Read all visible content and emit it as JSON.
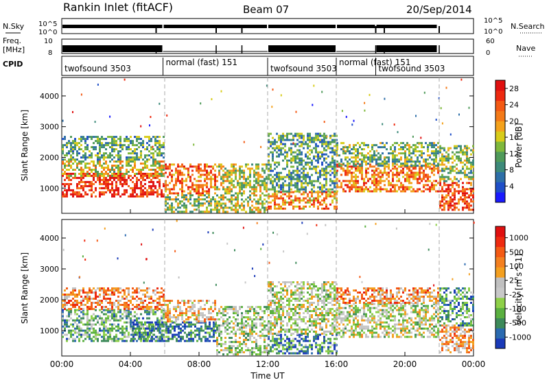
{
  "header": {
    "station": "Rankin Inlet (fitACF)",
    "beam": "Beam 07",
    "date": "20/Sep/2014"
  },
  "param_panel": {
    "left_labels": {
      "nsky": "N.Sky",
      "freq_top": "Freq.",
      "freq_bottom": "[MHz]",
      "cpid": "CPID"
    },
    "right_labels": {
      "nsearch": "N.Search",
      "nave": "Nave"
    },
    "nsky_ticks": [
      "10^5",
      "10^0"
    ],
    "nsearch_ticks": [
      "10^5",
      "10^0"
    ],
    "freq_ticks": [
      "10",
      "8"
    ],
    "nave_ticks": [
      "60",
      "0"
    ],
    "cpid_segments": [
      {
        "name": "twofsound",
        "id": "3503",
        "start_hour": 0.0,
        "end_hour": 5.9
      },
      {
        "name": "normal (fast)",
        "id": "151",
        "start_hour": 5.9,
        "end_hour": 12.0
      },
      {
        "name": "twofsound",
        "id": "3503",
        "start_hour": 12.0,
        "end_hour": 16.0
      },
      {
        "name": "normal (fast)",
        "id": "151",
        "start_hour": 16.0,
        "end_hour": 18.3
      },
      {
        "name": "twofsound",
        "id": "3503",
        "start_hour": 18.3,
        "end_hour": 21.9
      }
    ]
  },
  "chart_data": [
    {
      "type": "heatmap",
      "panel": "power",
      "ylabel": "Slant Range [km]",
      "xlabel": "",
      "ylim": [
        180,
        4600
      ],
      "xlim_hours": [
        0,
        24
      ],
      "yticks": [
        1000,
        2000,
        3000,
        4000
      ],
      "colorbar": {
        "label": "Power [dB]",
        "ticks": [
          4,
          8,
          12,
          16,
          20,
          24,
          28
        ],
        "range": [
          0,
          30
        ],
        "colors": [
          "#1a1aff",
          "#1f4fc8",
          "#2d6fa8",
          "#3d8a7a",
          "#4f9a5a",
          "#7fb83c",
          "#d8cc1a",
          "#f4a21c",
          "#f47a18",
          "#f45a14",
          "#ee2a10",
          "#e01010"
        ]
      },
      "scatter_regions": [
        {
          "t0": 0.0,
          "t1": 5.9,
          "r0": 700,
          "r1": 1500,
          "level": 0.9
        },
        {
          "t0": 0.0,
          "t1": 6.0,
          "r0": 1400,
          "r1": 1900,
          "level": 0.55
        },
        {
          "t0": 0.0,
          "t1": 6.0,
          "r0": 1900,
          "r1": 2700,
          "level": 0.35
        },
        {
          "t0": 6.0,
          "t1": 9.0,
          "r0": 800,
          "r1": 1800,
          "level": 0.75
        },
        {
          "t0": 6.0,
          "t1": 9.0,
          "r0": 250,
          "r1": 800,
          "level": 0.45
        },
        {
          "t0": 9.0,
          "t1": 12.0,
          "r0": 250,
          "r1": 1800,
          "level": 0.5
        },
        {
          "t0": 12.0,
          "t1": 16.0,
          "r0": 300,
          "r1": 900,
          "level": 0.7
        },
        {
          "t0": 12.0,
          "t1": 16.0,
          "r0": 900,
          "r1": 2800,
          "level": 0.35
        },
        {
          "t0": 16.0,
          "t1": 22.0,
          "r0": 900,
          "r1": 1800,
          "level": 0.75
        },
        {
          "t0": 16.0,
          "t1": 22.0,
          "r0": 1700,
          "r1": 2500,
          "level": 0.4
        },
        {
          "t0": 22.0,
          "t1": 24.0,
          "r0": 300,
          "r1": 1200,
          "level": 0.85
        },
        {
          "t0": 22.0,
          "t1": 24.0,
          "r0": 1200,
          "r1": 2400,
          "level": 0.45
        }
      ]
    },
    {
      "type": "heatmap",
      "panel": "velocity",
      "ylabel": "Slant Range [km]",
      "xlabel": "Time UT",
      "ylim": [
        180,
        4600
      ],
      "xlim_hours": [
        0,
        24
      ],
      "yticks": [
        1000,
        2000,
        3000,
        4000
      ],
      "xticks": [
        "00:00",
        "04:00",
        "08:00",
        "12:00",
        "16:00",
        "20:00",
        "00:00"
      ],
      "colorbar": {
        "label": "Velocity [m s^-1]",
        "ticks": [
          "1000",
          "500",
          "100",
          "25",
          "-25",
          "-100",
          "-500",
          "-1000"
        ],
        "colors": [
          "#1a3ab8",
          "#2a6ab0",
          "#3d8a5a",
          "#5ab040",
          "#8ed048",
          "#c8c8c8",
          "#c0c0c0",
          "#f4a020",
          "#f48020",
          "#f45a14",
          "#ee2a10",
          "#e01010"
        ]
      },
      "scatter_regions": [
        {
          "t0": 0.0,
          "t1": 6.0,
          "r0": 700,
          "r1": 1700,
          "level": 0.3
        },
        {
          "t0": 0.0,
          "t1": 6.0,
          "r0": 1700,
          "r1": 2400,
          "level": 0.7
        },
        {
          "t0": 4.0,
          "t1": 9.0,
          "r0": 700,
          "r1": 1300,
          "level": 0.15
        },
        {
          "t0": 6.0,
          "t1": 9.0,
          "r0": 1300,
          "r1": 2000,
          "level": 0.6
        },
        {
          "t0": 9.0,
          "t1": 12.0,
          "r0": 250,
          "r1": 1800,
          "level": 0.4
        },
        {
          "t0": 12.0,
          "t1": 16.0,
          "r0": 300,
          "r1": 900,
          "level": 0.2
        },
        {
          "t0": 12.0,
          "t1": 16.0,
          "r0": 900,
          "r1": 2600,
          "level": 0.45
        },
        {
          "t0": 16.0,
          "t1": 22.0,
          "r0": 800,
          "r1": 1900,
          "level": 0.45
        },
        {
          "t0": 16.0,
          "t1": 22.0,
          "r0": 1900,
          "r1": 2400,
          "level": 0.7
        },
        {
          "t0": 22.0,
          "t1": 24.0,
          "r0": 300,
          "r1": 1200,
          "level": 0.65
        },
        {
          "t0": 22.0,
          "t1": 24.0,
          "r0": 1200,
          "r1": 2400,
          "level": 0.25
        }
      ]
    }
  ]
}
